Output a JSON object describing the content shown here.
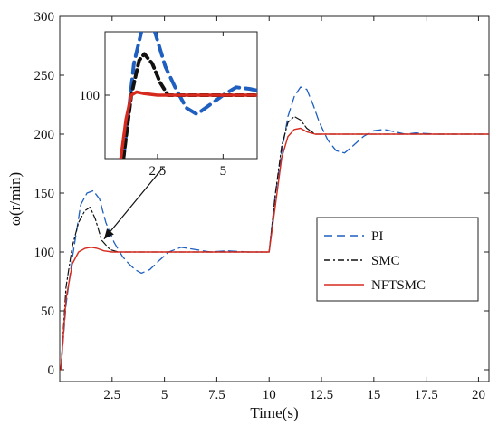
{
  "chart_data": [
    {
      "type": "line",
      "title": "",
      "xlabel": "Time(s)",
      "ylabel": "ω(r/min)",
      "xlim": [
        0,
        20.5
      ],
      "ylim": [
        -10,
        300
      ],
      "grid": false,
      "legend_position": "center-right",
      "xticks": [
        2.5,
        5,
        7.5,
        10,
        12.5,
        15,
        17.5,
        20
      ],
      "xtick_labels": [
        "2.5",
        "5",
        "7.5",
        "10",
        "12.5",
        "15",
        "17.5",
        "20"
      ],
      "yticks": [
        0,
        50,
        100,
        150,
        200,
        250,
        300
      ],
      "ytick_labels": [
        "0",
        "50",
        "100",
        "150",
        "200",
        "250",
        "300"
      ],
      "series": [
        {
          "name": "PI",
          "color": "#1f5fbf",
          "style": "dashed",
          "x": [
            0.05,
            0.3,
            0.6,
            1.0,
            1.3,
            1.6,
            1.9,
            2.2,
            2.6,
            3.0,
            3.3,
            3.6,
            3.9,
            4.3,
            4.7,
            5.2,
            5.8,
            6.5,
            7.2,
            8.0,
            9.0,
            10.0,
            10.3,
            10.6,
            10.9,
            11.2,
            11.5,
            11.8,
            12.1,
            12.4,
            12.8,
            13.2,
            13.6,
            14.0,
            14.5,
            15.0,
            15.5,
            16.0,
            16.5,
            17.0,
            18.0,
            19.0,
            20.5
          ],
          "y": [
            0,
            55,
            95,
            140,
            150,
            152,
            145,
            125,
            108,
            96,
            90,
            85,
            82,
            85,
            92,
            100,
            104,
            102,
            100,
            101,
            100,
            100,
            150,
            185,
            215,
            232,
            240,
            238,
            225,
            210,
            195,
            186,
            184,
            190,
            198,
            203,
            204,
            202,
            200,
            201,
            200,
            200,
            200
          ]
        },
        {
          "name": "SMC",
          "color": "#111111",
          "style": "dashdot",
          "x": [
            0.05,
            0.3,
            0.6,
            0.9,
            1.2,
            1.45,
            1.7,
            2.0,
            2.4,
            2.8,
            3.5,
            4.5,
            6.0,
            8.0,
            10.0,
            10.3,
            10.6,
            10.9,
            11.2,
            11.5,
            11.8,
            12.2,
            12.6,
            13.5,
            15.0,
            17.5,
            20.5
          ],
          "y": [
            0,
            70,
            105,
            125,
            135,
            138,
            128,
            110,
            102,
            100,
            100,
            100,
            100,
            100,
            100,
            150,
            190,
            210,
            215,
            212,
            205,
            200,
            200,
            200,
            200,
            200,
            200
          ]
        },
        {
          "name": "NFTSMC",
          "color": "#d62a1e",
          "style": "solid",
          "x": [
            0.05,
            0.3,
            0.6,
            0.9,
            1.2,
            1.5,
            1.8,
            2.1,
            2.5,
            3.0,
            4.0,
            5.0,
            6.0,
            7.5,
            9.0,
            10.0,
            10.3,
            10.6,
            10.9,
            11.2,
            11.5,
            11.8,
            12.2,
            13.0,
            15.0,
            17.5,
            20.5
          ],
          "y": [
            0,
            60,
            90,
            100,
            103,
            104,
            103,
            101,
            100,
            100,
            100,
            100,
            100,
            100,
            100,
            100,
            140,
            180,
            198,
            204,
            205,
            202,
            200,
            200,
            200,
            200,
            200
          ]
        }
      ]
    },
    {
      "type": "line",
      "role": "inset",
      "title": "",
      "xlabel": "",
      "ylabel": "",
      "xlim": [
        0.5,
        6.3
      ],
      "ylim": [
        60,
        140
      ],
      "xticks": [
        2.5,
        5
      ],
      "xtick_labels": [
        "2.5",
        "5"
      ],
      "yticks": [
        100
      ],
      "ytick_labels": [
        "100"
      ],
      "series": [
        {
          "name": "PI",
          "color": "#1f5fbf",
          "style": "dashed",
          "x": [
            1.2,
            1.6,
            2.0,
            2.4,
            2.8,
            3.2,
            3.6,
            4.0,
            4.5,
            5.0,
            5.5,
            6.0,
            6.3
          ],
          "y": [
            60,
            120,
            148,
            140,
            118,
            104,
            92,
            88,
            94,
            100,
            105,
            104,
            103
          ]
        },
        {
          "name": "SMC",
          "color": "#111111",
          "style": "dashed",
          "x": [
            1.2,
            1.5,
            1.8,
            2.0,
            2.3,
            2.6,
            2.9,
            3.2,
            4.0,
            5.0,
            6.3
          ],
          "y": [
            60,
            100,
            122,
            126,
            120,
            108,
            100,
            100,
            100,
            100,
            100
          ]
        },
        {
          "name": "NFTSMC",
          "color": "#d62a1e",
          "style": "solid",
          "x": [
            1.1,
            1.3,
            1.5,
            1.7,
            2.0,
            2.5,
            3.0,
            4.0,
            5.0,
            6.3
          ],
          "y": [
            60,
            85,
            100,
            102,
            101,
            100,
            100,
            100,
            100,
            100
          ]
        }
      ]
    }
  ]
}
